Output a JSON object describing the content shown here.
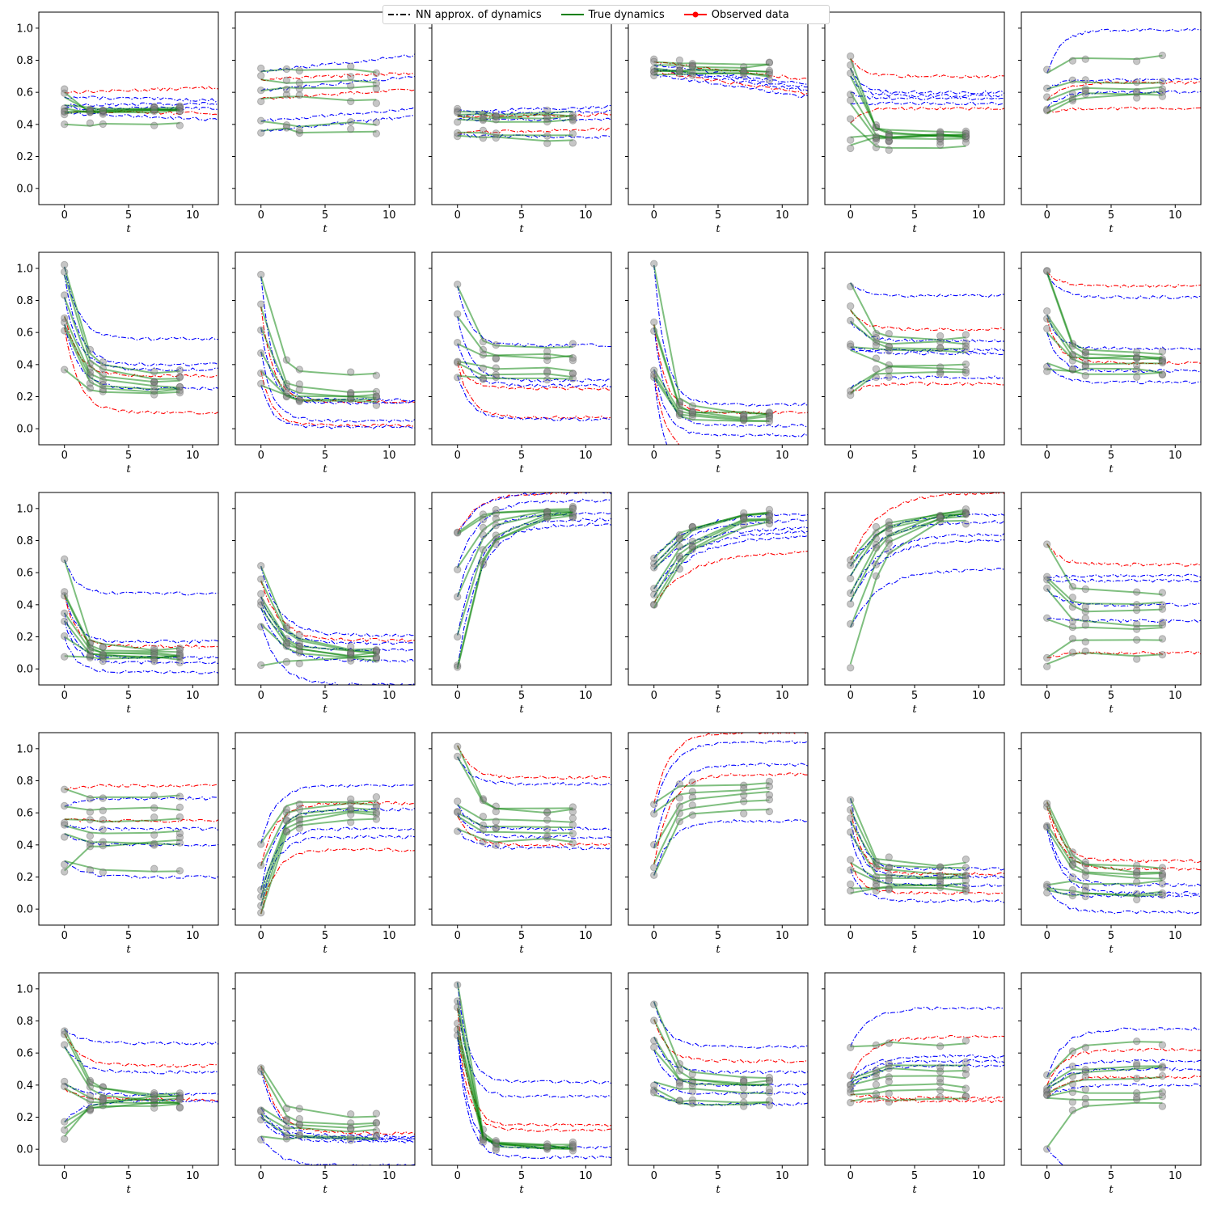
{
  "legend": {
    "nn_label": "NN approx. of dynamics",
    "true_label": "True dynamics",
    "obs_label": "Observed data"
  },
  "colors": {
    "nn_blue": "#0000ff",
    "nn_red": "#ff0000",
    "true": "#008000",
    "obs_marker": "#808080"
  },
  "chart_data": {
    "type": "line",
    "rows": 5,
    "cols": 6,
    "xlabel": "t",
    "xlim": [
      -2,
      12
    ],
    "ylim": [
      -0.1,
      1.1
    ],
    "xticks": [
      0,
      5,
      10
    ],
    "yticks": [
      0.0,
      0.2,
      0.4,
      0.6,
      0.8,
      1.0
    ],
    "obs_times": [
      0,
      2,
      3,
      7,
      9
    ],
    "nn_tmax": 12,
    "panels": [
      {
        "kind": "flat",
        "s": [
          0.6,
          0.57,
          0.52,
          0.5,
          0.48,
          0.47,
          0.4
        ],
        "e": [
          0.63,
          0.55,
          0.53,
          0.5,
          0.47,
          0.43
        ],
        "b": [
          0.48,
          0.49,
          0.5,
          0.48,
          0.49,
          0.49,
          0.4
        ],
        "r": [
          1,
          0,
          0,
          0,
          1,
          0
        ]
      },
      {
        "kind": "flat",
        "s": [
          0.73,
          0.68,
          0.61,
          0.56,
          0.42,
          0.36
        ],
        "e": [
          0.83,
          0.72,
          0.7,
          0.62,
          0.5,
          0.45
        ],
        "b": [
          0.73,
          0.67,
          0.63,
          0.56,
          0.4,
          0.36
        ],
        "r": [
          0,
          1,
          0,
          1,
          0,
          0
        ]
      },
      {
        "kind": "flat",
        "s": [
          0.48,
          0.46,
          0.45,
          0.43,
          0.35,
          0.33
        ],
        "e": [
          0.51,
          0.48,
          0.46,
          0.43,
          0.37,
          0.32
        ],
        "b": [
          0.47,
          0.45,
          0.44,
          0.42,
          0.34,
          0.31
        ],
        "r": [
          0,
          0,
          1,
          0,
          1,
          0
        ]
      },
      {
        "kind": "flat",
        "s": [
          0.79,
          0.77,
          0.75,
          0.74,
          0.73,
          0.71
        ],
        "e": [
          0.68,
          0.65,
          0.63,
          0.61,
          0.59,
          0.57
        ],
        "b": [
          0.78,
          0.76,
          0.74,
          0.73,
          0.72,
          0.71
        ],
        "r": [
          1,
          0,
          0,
          0,
          1,
          0
        ]
      },
      {
        "kind": "exp",
        "s": [
          0.81,
          0.75,
          0.7,
          0.6,
          0.53,
          0.41,
          0.32,
          0.27
        ],
        "e": [
          0.7,
          0.6,
          0.58,
          0.56,
          0.53,
          0.5
        ],
        "b": [
          0.34,
          0.33,
          0.33,
          0.32,
          0.3,
          0.25,
          0.33,
          0.33
        ],
        "k": 1.2,
        "r": [
          1,
          0,
          0,
          0,
          0,
          1
        ]
      },
      {
        "kind": "rise",
        "s": [
          0.72,
          0.62,
          0.55,
          0.5,
          0.47
        ],
        "e": [
          0.99,
          0.68,
          0.66,
          0.6,
          0.5
        ],
        "b": [
          0.82,
          0.67,
          0.63,
          0.6,
          0.58
        ],
        "k": 0.9,
        "r": [
          0,
          0,
          1,
          0,
          1
        ]
      },
      {
        "kind": "exp",
        "s": [
          1.01,
          0.96,
          0.82,
          0.7,
          0.65,
          0.63,
          0.37
        ],
        "e": [
          0.56,
          0.4,
          0.37,
          0.33,
          0.25,
          0.1
        ],
        "b": [
          0.35,
          0.32,
          0.3,
          0.27,
          0.25,
          0.24,
          0.22
        ],
        "k": 0.9,
        "r": [
          0,
          0,
          0,
          1,
          0,
          1
        ]
      },
      {
        "kind": "exp",
        "s": [
          0.95,
          0.76,
          0.63,
          0.48,
          0.36,
          0.27
        ],
        "e": [
          0.18,
          0.17,
          0.16,
          0.05,
          0.02,
          0.01
        ],
        "b": [
          0.35,
          0.23,
          0.21,
          0.18,
          0.17,
          0.19
        ],
        "k": 1.1,
        "r": [
          0,
          1,
          0,
          0,
          1,
          0
        ]
      },
      {
        "kind": "exp",
        "s": [
          0.89,
          0.7,
          0.53,
          0.42,
          0.41,
          0.33
        ],
        "e": [
          0.52,
          0.3,
          0.27,
          0.25,
          0.07,
          0.06
        ],
        "b": [
          0.5,
          0.46,
          0.45,
          0.37,
          0.33,
          0.31
        ],
        "k": 1.0,
        "r": [
          0,
          0,
          0,
          1,
          1,
          0
        ]
      },
      {
        "kind": "exp",
        "s": [
          1.02,
          0.65,
          0.63,
          0.37,
          0.34,
          0.32
        ],
        "e": [
          0.15,
          0.1,
          0.02,
          -0.04,
          -0.15,
          -0.3
        ],
        "b": [
          0.1,
          0.09,
          0.08,
          0.07,
          0.06,
          0.05
        ],
        "k": 1.1,
        "r": [
          0,
          1,
          0,
          0,
          1,
          0
        ]
      },
      {
        "kind": "exp",
        "s": [
          0.91,
          0.74,
          0.67,
          0.51,
          0.49,
          0.25,
          0.22
        ],
        "e": [
          0.83,
          0.62,
          0.55,
          0.49,
          0.47,
          0.32,
          0.28
        ],
        "b": [
          0.56,
          0.53,
          0.5,
          0.48,
          0.4,
          0.38,
          0.36
        ],
        "k": 1.0,
        "r": [
          0,
          1,
          0,
          0,
          0,
          0,
          1
        ]
      },
      {
        "kind": "exp",
        "s": [
          0.98,
          0.97,
          0.71,
          0.69,
          0.6,
          0.41,
          0.37
        ],
        "e": [
          0.89,
          0.82,
          0.5,
          0.41,
          0.36,
          0.29
        ],
        "b": [
          0.47,
          0.45,
          0.44,
          0.43,
          0.4,
          0.36,
          0.35
        ],
        "k": 1.1,
        "r": [
          1,
          0,
          0,
          1,
          0,
          0
        ]
      },
      {
        "kind": "exp",
        "s": [
          0.68,
          0.47,
          0.46,
          0.35,
          0.3,
          0.2,
          0.08
        ],
        "e": [
          0.47,
          0.17,
          0.14,
          0.07,
          0.04,
          -0.02
        ],
        "b": [
          0.12,
          0.1,
          0.09,
          0.08,
          0.08,
          0.07,
          0.07
        ],
        "k": 1.1,
        "r": [
          0,
          0,
          1,
          0,
          0,
          0
        ]
      },
      {
        "kind": "exp",
        "s": [
          0.64,
          0.55,
          0.45,
          0.42,
          0.38,
          0.28,
          0.02
        ],
        "e": [
          0.21,
          0.18,
          0.16,
          0.12,
          0.05,
          -0.1
        ],
        "b": [
          0.13,
          0.12,
          0.1,
          0.09,
          0.08,
          0.07,
          0.06
        ],
        "k": 0.7,
        "r": [
          0,
          1,
          0,
          0,
          0,
          0,
          1
        ]
      },
      {
        "kind": "rise",
        "s": [
          0.85,
          0.84,
          0.63,
          0.45,
          0.21,
          0.01,
          0.0
        ],
        "e": [
          1.1,
          1.1,
          1.05,
          0.97,
          0.93,
          0.9
        ],
        "b": [
          0.99,
          0.99,
          0.98,
          0.98,
          0.97,
          0.97,
          0.96
        ],
        "k": 0.6,
        "r": [
          1,
          0,
          0,
          0,
          0,
          0
        ]
      },
      {
        "kind": "rise",
        "s": [
          0.69,
          0.65,
          0.62,
          0.5,
          0.45,
          0.41,
          0.38
        ],
        "e": [
          0.97,
          0.93,
          0.88,
          0.86,
          0.83,
          0.73
        ],
        "b": [
          0.99,
          0.98,
          0.98,
          0.97,
          0.96,
          0.95,
          0.93
        ],
        "k": 0.35,
        "r": [
          0,
          0,
          0,
          0,
          0,
          1
        ]
      },
      {
        "kind": "rise",
        "s": [
          0.68,
          0.64,
          0.58,
          0.47,
          0.42,
          0.26,
          0.03
        ],
        "e": [
          1.1,
          0.96,
          0.92,
          0.84,
          0.8,
          0.62
        ],
        "b": [
          0.99,
          0.98,
          0.98,
          0.97,
          0.97,
          0.96,
          0.95
        ],
        "k": 0.45,
        "r": [
          1,
          0,
          0,
          0,
          0,
          0
        ]
      },
      {
        "kind": "exp",
        "s": [
          0.78,
          0.57,
          0.55,
          0.5,
          0.31,
          0.07,
          0.03
        ],
        "e": [
          0.65,
          0.58,
          0.55,
          0.4,
          0.3,
          0.1
        ],
        "b": [
          0.47,
          0.41,
          0.36,
          0.28,
          0.25,
          0.18,
          0.09
        ],
        "k": 1.0,
        "r": [
          1,
          0,
          0,
          0,
          0,
          1
        ]
      },
      {
        "kind": "exp",
        "s": [
          0.75,
          0.64,
          0.56,
          0.52,
          0.47,
          0.3,
          0.24
        ],
        "e": [
          0.77,
          0.69,
          0.55,
          0.5,
          0.4,
          0.2
        ],
        "b": [
          0.7,
          0.63,
          0.55,
          0.48,
          0.4,
          0.24,
          0.42
        ],
        "k": 0.8,
        "r": [
          1,
          0,
          1,
          0,
          0,
          0
        ]
      },
      {
        "kind": "rise",
        "s": [
          0.41,
          0.27,
          0.12,
          0.07,
          0.02,
          -0.03
        ],
        "e": [
          0.77,
          0.66,
          0.62,
          0.5,
          0.45,
          0.37
        ],
        "b": [
          0.68,
          0.65,
          0.63,
          0.61,
          0.59,
          0.57
        ],
        "k": 0.9,
        "r": [
          0,
          1,
          0,
          0,
          0,
          1
        ]
      },
      {
        "kind": "exp",
        "s": [
          1.02,
          0.95,
          0.65,
          0.6,
          0.58,
          0.5
        ],
        "e": [
          0.82,
          0.78,
          0.5,
          0.45,
          0.4,
          0.38
        ],
        "b": [
          0.62,
          0.61,
          0.55,
          0.5,
          0.48,
          0.43
        ],
        "k": 1.0,
        "r": [
          1,
          0,
          0,
          0,
          1,
          0
        ]
      },
      {
        "kind": "rise",
        "s": [
          0.66,
          0.6,
          0.38,
          0.28,
          0.21
        ],
        "e": [
          1.1,
          1.04,
          0.9,
          0.84,
          0.55
        ],
        "b": [
          0.79,
          0.75,
          0.72,
          0.68,
          0.63
        ],
        "k": 0.8,
        "r": [
          1,
          0,
          0,
          1,
          0
        ]
      },
      {
        "kind": "exp",
        "s": [
          0.69,
          0.62,
          0.55,
          0.47,
          0.29,
          0.25,
          0.13,
          0.1
        ],
        "e": [
          0.25,
          0.22,
          0.2,
          0.15,
          0.1,
          0.05
        ],
        "b": [
          0.28,
          0.25,
          0.22,
          0.2,
          0.18,
          0.15,
          0.14,
          0.12
        ],
        "k": 1.1,
        "r": [
          0,
          1,
          0,
          0,
          1,
          0,
          0,
          0
        ]
      },
      {
        "kind": "exp",
        "s": [
          0.67,
          0.64,
          0.53,
          0.5,
          0.15,
          0.13,
          0.12
        ],
        "e": [
          0.3,
          0.25,
          0.15,
          0.1,
          0.08,
          -0.02
        ],
        "b": [
          0.26,
          0.24,
          0.22,
          0.19,
          0.17,
          0.1,
          0.09
        ],
        "k": 0.9,
        "r": [
          1,
          1,
          0,
          0,
          0,
          0
        ]
      },
      {
        "kind": "mix",
        "s": [
          0.75,
          0.72,
          0.64,
          0.41,
          0.38,
          0.17,
          0.13,
          0.08
        ],
        "e": [
          0.66,
          0.52,
          0.48,
          0.34,
          0.31,
          0.3
        ],
        "b": [
          0.34,
          0.33,
          0.31,
          0.3,
          0.29,
          0.28,
          0.27,
          0.32
        ],
        "k": 0.8,
        "r": [
          0,
          1,
          0,
          0,
          1,
          0
        ]
      },
      {
        "kind": "exp",
        "s": [
          0.52,
          0.49,
          0.26,
          0.22,
          0.2,
          0.08
        ],
        "e": [
          0.1,
          0.08,
          0.07,
          0.06,
          0.05,
          -0.1
        ],
        "b": [
          0.21,
          0.15,
          0.14,
          0.12,
          0.07,
          0.06
        ],
        "k": 0.8,
        "r": [
          1,
          0,
          0,
          0,
          0,
          0
        ]
      },
      {
        "kind": "exp",
        "s": [
          1.04,
          0.93,
          0.88,
          0.77,
          0.74,
          0.7
        ],
        "e": [
          0.42,
          0.33,
          0.15,
          0.12,
          0.01,
          -0.05
        ],
        "b": [
          0.02,
          0.01,
          0.01,
          0.01,
          0.01,
          0.01
        ],
        "k": 1.2,
        "r": [
          0,
          0,
          1,
          1,
          0,
          0
        ]
      },
      {
        "kind": "exp",
        "s": [
          0.92,
          0.81,
          0.7,
          0.62,
          0.42,
          0.38,
          0.34
        ],
        "e": [
          0.64,
          0.55,
          0.48,
          0.4,
          0.35,
          0.28
        ],
        "b": [
          0.45,
          0.42,
          0.41,
          0.4,
          0.36,
          0.3,
          0.28
        ],
        "k": 1.0,
        "r": [
          0,
          1,
          0,
          0,
          0,
          0
        ]
      },
      {
        "kind": "mix",
        "s": [
          0.64,
          0.44,
          0.42,
          0.4,
          0.36,
          0.34,
          0.3
        ],
        "e": [
          0.88,
          0.7,
          0.58,
          0.55,
          0.52,
          0.32,
          0.3
        ],
        "b": [
          0.66,
          0.52,
          0.5,
          0.45,
          0.4,
          0.36,
          0.32
        ],
        "k": 0.7,
        "r": [
          0,
          1,
          0,
          0,
          0,
          1,
          1
        ]
      },
      {
        "kind": "mix",
        "s": [
          0.45,
          0.4,
          0.38,
          0.35,
          0.33,
          0.32,
          0.01
        ],
        "e": [
          0.75,
          0.62,
          0.55,
          0.5,
          0.45,
          0.4,
          -0.15
        ],
        "b": [
          0.67,
          0.52,
          0.5,
          0.44,
          0.36,
          0.31,
          0.3
        ],
        "k": 0.8,
        "r": [
          0,
          1,
          0,
          0,
          1,
          0,
          0
        ]
      }
    ]
  }
}
